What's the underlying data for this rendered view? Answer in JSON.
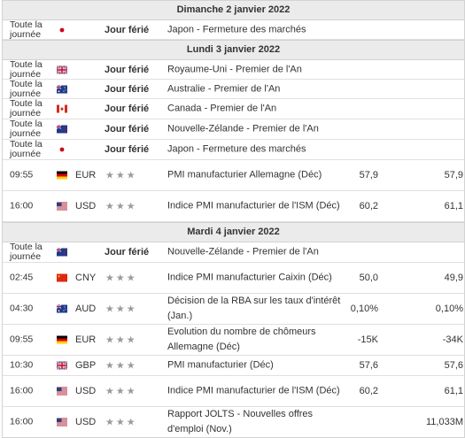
{
  "calendar": {
    "days": [
      {
        "date": "Dimanche 2 janvier 2022",
        "events": [
          {
            "time": "Toute la journée",
            "country_flag": "japan-flag-icon",
            "currency": "",
            "importance": "Jour férié",
            "event": "Japon - Fermeture des marchés",
            "actual": "",
            "forecast": "",
            "previous": "",
            "height": 21
          }
        ]
      },
      {
        "date": "Lundi 3 janvier 2022",
        "events": [
          {
            "time": "Toute la journée",
            "country_flag": "uk-flag-icon",
            "currency": "",
            "importance": "Jour férié",
            "event": "Royaume-Uni - Premier de l'An",
            "actual": "",
            "forecast": "",
            "previous": "",
            "height": 21
          },
          {
            "time": "Toute la journée",
            "country_flag": "australia-flag-icon",
            "currency": "",
            "importance": "Jour férié",
            "event": "Australie - Premier de l'An",
            "actual": "",
            "forecast": "",
            "previous": "",
            "height": 21
          },
          {
            "time": "Toute la journée",
            "country_flag": "canada-flag-icon",
            "currency": "",
            "importance": "Jour férié",
            "event": "Canada - Premier de l'An",
            "actual": "",
            "forecast": "",
            "previous": "",
            "height": 22
          },
          {
            "time": "Toute la journée",
            "country_flag": "new-zealand-flag-icon",
            "currency": "",
            "importance": "Jour férié",
            "event": "Nouvelle-Zélande - Premier de l'An",
            "actual": "",
            "forecast": "",
            "previous": "",
            "height": 22
          },
          {
            "time": "Toute la journée",
            "country_flag": "japan-flag-icon",
            "currency": "",
            "importance": "Jour férié",
            "event": "Japon - Fermeture des marchés",
            "actual": "",
            "forecast": "",
            "previous": "",
            "height": 22
          },
          {
            "time": "09:55",
            "country_flag": "germany-flag-icon",
            "currency": "EUR",
            "importance": "★★★",
            "event": "PMI manufacturier Allemagne (Déc)",
            "actual": "",
            "forecast": "57,9",
            "previous": "57,9",
            "height": 34
          },
          {
            "time": "16:00",
            "country_flag": "usa-flag-icon",
            "currency": "USD",
            "importance": "★★★",
            "event": "Indice PMI manufacturier de l'ISM (Déc)",
            "actual": "",
            "forecast": "60,2",
            "previous": "61,1",
            "height": 34
          }
        ]
      },
      {
        "date": "Mardi 4 janvier 2022",
        "events": [
          {
            "time": "Toute la journée",
            "country_flag": "new-zealand-flag-icon",
            "currency": "",
            "importance": "Jour férié",
            "event": "Nouvelle-Zélande - Premier de l'An",
            "actual": "",
            "forecast": "",
            "previous": "",
            "height": 22
          },
          {
            "time": "02:45",
            "country_flag": "china-flag-icon",
            "currency": "CNY",
            "importance": "★★★",
            "event": "Indice PMI manufacturier Caixin (Déc)",
            "actual": "",
            "forecast": "50,0",
            "previous": "49,9",
            "height": 34
          },
          {
            "time": "04:30",
            "country_flag": "australia-flag-icon",
            "currency": "AUD",
            "importance": "★★★",
            "event": "Décision de la RBA sur les taux d'intérêt (Jan.)",
            "actual": "",
            "forecast": "0,10%",
            "previous": "0,10%",
            "height": 34
          },
          {
            "time": "09:55",
            "country_flag": "germany-flag-icon",
            "currency": "EUR",
            "importance": "★★★",
            "event": "Evolution du nombre de chômeurs Allemagne (Déc)",
            "actual": "",
            "forecast": "-15K",
            "previous": "-34K",
            "height": 34
          },
          {
            "time": "10:30",
            "country_flag": "uk-flag-icon",
            "currency": "GBP",
            "importance": "★★★",
            "event": "PMI manufacturier (Déc)",
            "actual": "",
            "forecast": "57,6",
            "previous": "57,6",
            "height": 22
          },
          {
            "time": "16:00",
            "country_flag": "usa-flag-icon",
            "currency": "USD",
            "importance": "★★★",
            "event": "Indice PMI manufacturier de l'ISM (Déc)",
            "actual": "",
            "forecast": "60,2",
            "previous": "61,1",
            "height": 34
          },
          {
            "time": "16:00",
            "country_flag": "usa-flag-icon",
            "currency": "USD",
            "importance": "★★★",
            "event": "Rapport JOLTS - Nouvelles offres d'emploi (Nov.)",
            "actual": "",
            "forecast": "",
            "previous": "11,033M",
            "height": 34
          }
        ]
      }
    ]
  }
}
